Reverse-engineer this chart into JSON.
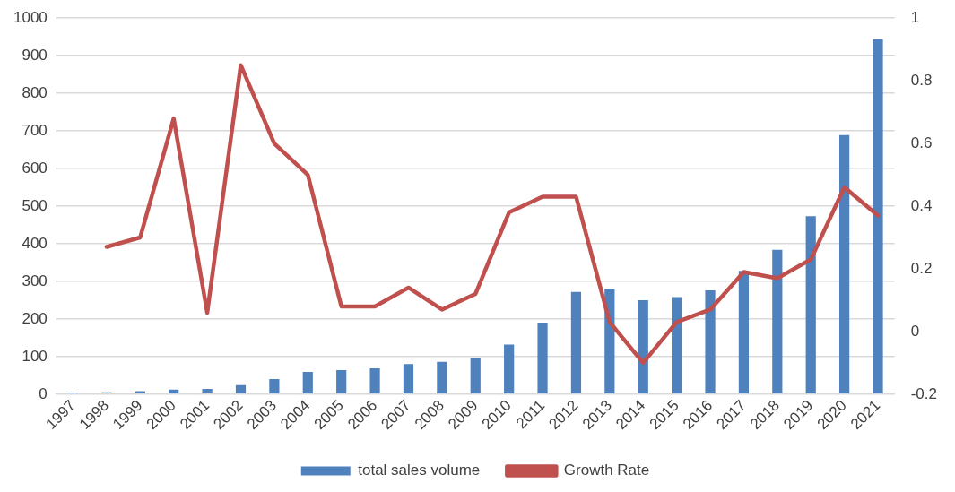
{
  "chart_data": {
    "type": "bar",
    "categories": [
      "1997",
      "1998",
      "1999",
      "2000",
      "2001",
      "2002",
      "2003",
      "2004",
      "2005",
      "2006",
      "2007",
      "2008",
      "2009",
      "2010",
      "2011",
      "2012",
      "2013",
      "2014",
      "2015",
      "2016",
      "2017",
      "2018",
      "2019",
      "2020",
      "2021"
    ],
    "series": [
      {
        "name": "total sales volume",
        "color": "#4f81bd",
        "values": [
          4,
          5,
          8,
          12,
          14,
          24,
          40,
          59,
          64,
          69,
          80,
          86,
          95,
          132,
          190,
          272,
          280,
          250,
          258,
          276,
          328,
          384,
          473,
          689,
          944
        ]
      },
      {
        "name": "Growth Rate",
        "type": "line",
        "axis": "y2",
        "color": "#c0504d",
        "values": [
          null,
          0.27,
          0.3,
          0.68,
          0.06,
          0.85,
          0.6,
          0.5,
          0.08,
          0.08,
          0.14,
          0.07,
          0.12,
          0.38,
          0.43,
          0.43,
          0.03,
          -0.1,
          0.03,
          0.07,
          0.19,
          0.17,
          0.23,
          0.46,
          0.37
        ]
      }
    ],
    "ylim": [
      0,
      1000
    ],
    "yticks": [
      0,
      100,
      200,
      300,
      400,
      500,
      600,
      700,
      800,
      900,
      1000
    ],
    "y2lim": [
      -0.2,
      1
    ],
    "y2ticks": [
      -0.2,
      0,
      0.2,
      0.4,
      0.6,
      0.8,
      1
    ],
    "grid": "y",
    "legend": "bottom",
    "marker": "none",
    "line_style": "solid"
  }
}
